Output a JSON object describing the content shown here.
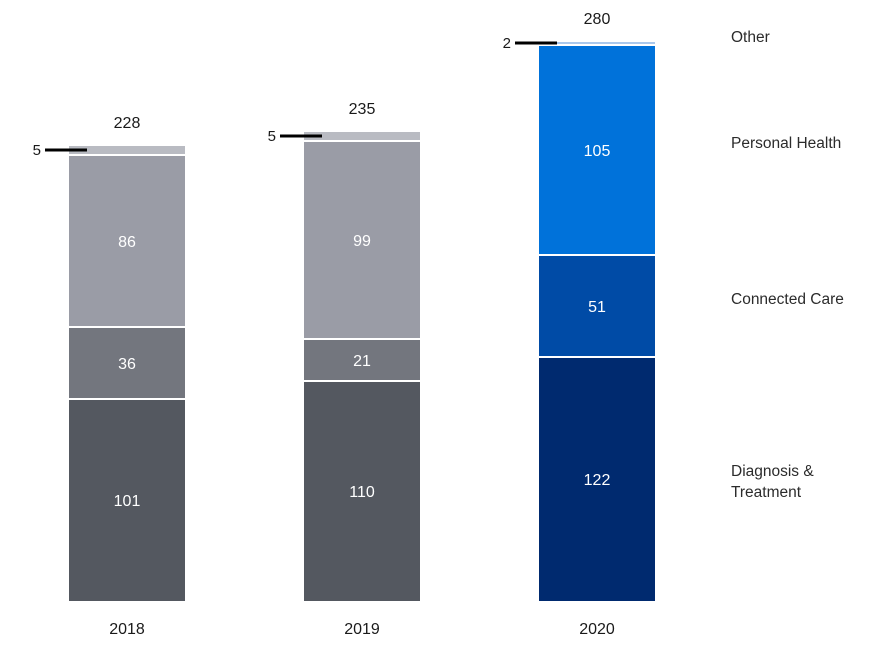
{
  "chart_data": {
    "type": "bar",
    "stacked": true,
    "categories": [
      "2018",
      "2019",
      "2020"
    ],
    "series": [
      {
        "name": "Diagnosis & Treatment",
        "values": [
          101,
          110,
          122
        ],
        "colors": [
          "#545860",
          "#545860",
          "#002a6f"
        ]
      },
      {
        "name": "Connected Care",
        "values": [
          36,
          21,
          51
        ],
        "colors": [
          "#73767e",
          "#73767e",
          "#004ba6"
        ]
      },
      {
        "name": "Personal Health",
        "values": [
          86,
          99,
          105
        ],
        "colors": [
          "#9a9ca6",
          "#9a9ca6",
          "#0072da"
        ]
      },
      {
        "name": "Other",
        "values": [
          5,
          5,
          2
        ],
        "colors": [
          "#b9bbc2",
          "#b9bbc2",
          "#aac8ec"
        ]
      }
    ],
    "totals": [
      228,
      235,
      280
    ],
    "legend": {
      "position": "right",
      "entries": [
        "Other",
        "Personal Health",
        "Connected Care",
        "Diagnosis & Treatment"
      ]
    },
    "ylim": [
      0,
      280
    ],
    "grid": false,
    "title": "",
    "xlabel": "",
    "ylabel": ""
  }
}
